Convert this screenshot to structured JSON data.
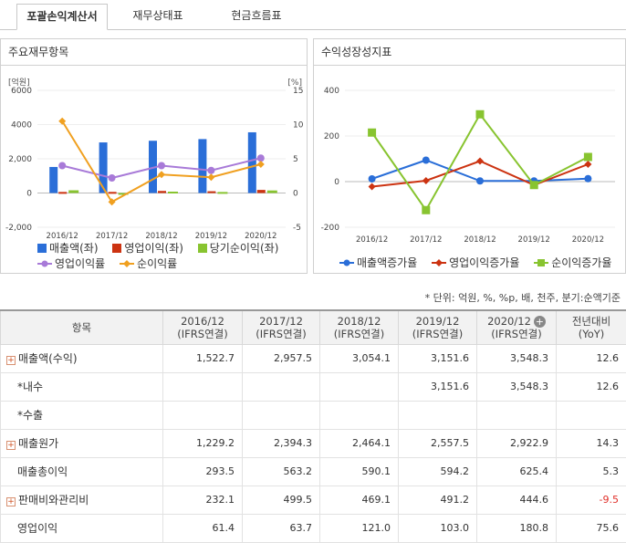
{
  "tabs": [
    {
      "label": "포괄손익계산서",
      "active": true
    },
    {
      "label": "재무상태표",
      "active": false
    },
    {
      "label": "현금흐름표",
      "active": false
    }
  ],
  "panel_left": {
    "title": "주요재무항목",
    "legend": [
      {
        "label": "매출액(좌)",
        "color": "#2a6ed8"
      },
      {
        "label": "영업이익(좌)",
        "color": "#cc3311"
      },
      {
        "label": "당기순이익(좌)",
        "color": "#88c430"
      },
      {
        "label": "영업이익률",
        "color": "#a87ad8"
      },
      {
        "label": "순이익률",
        "color": "#f0a020"
      }
    ]
  },
  "panel_right": {
    "title": "수익성장성지표",
    "legend": [
      {
        "label": "매출액증가율",
        "color": "#2a6ed8"
      },
      {
        "label": "영업이익증가율",
        "color": "#cc3311"
      },
      {
        "label": "순이익증가율",
        "color": "#88c430"
      }
    ]
  },
  "chart_data": [
    {
      "type": "bar",
      "categories": [
        "2016/12",
        "2017/12",
        "2018/12",
        "2019/12",
        "2020/12"
      ],
      "left_axis_label": "[억원]",
      "right_axis_label": "[%]",
      "ylim_left": [
        -2000,
        6000
      ],
      "yticks_left": [
        "6000",
        "4000",
        "2,000",
        "0",
        "-2,000"
      ],
      "ylim_right": [
        -5,
        15
      ],
      "yticks_right": [
        "15",
        "10",
        "5",
        "0",
        "-5"
      ],
      "series": [
        {
          "name": "매출액(좌)",
          "type": "bar",
          "values": [
            1522.7,
            2957.5,
            3054.1,
            3151.6,
            3548.3
          ],
          "color": "#2a6ed8"
        },
        {
          "name": "영업이익(좌)",
          "type": "bar",
          "values": [
            61.4,
            63.7,
            121.0,
            103.0,
            180.8
          ],
          "color": "#cc3311"
        },
        {
          "name": "당기순이익(좌)",
          "type": "bar",
          "values": [
            160,
            -40,
            80,
            60,
            150
          ],
          "color": "#88c430"
        },
        {
          "name": "영업이익률",
          "type": "line",
          "axis": "right",
          "values": [
            4.0,
            2.2,
            4.0,
            3.3,
            5.1
          ],
          "color": "#a87ad8"
        },
        {
          "name": "순이익률",
          "type": "line",
          "axis": "right",
          "values": [
            10.5,
            -1.3,
            2.7,
            2.3,
            4.2
          ],
          "color": "#f0a020"
        }
      ]
    },
    {
      "type": "line",
      "categories": [
        "2016/12",
        "2017/12",
        "2018/12",
        "2019/12",
        "2020/12"
      ],
      "ylim": [
        -200,
        400
      ],
      "yticks": [
        "400",
        "200",
        "0",
        "-200"
      ],
      "series": [
        {
          "name": "매출액증가율",
          "values": [
            12,
            94,
            3,
            3,
            13
          ],
          "color": "#2a6ed8"
        },
        {
          "name": "영업이익증가율",
          "values": [
            -22,
            4,
            90,
            -15,
            76
          ],
          "color": "#cc3311"
        },
        {
          "name": "순이익증가율",
          "values": [
            215,
            -125,
            295,
            -15,
            108
          ],
          "color": "#88c430"
        }
      ]
    }
  ],
  "unit_note": "* 단위: 억원, %, %p, 배, 천주, 분기:순액기준",
  "table": {
    "header_item": "항목",
    "columns": [
      {
        "year": "2016/12",
        "basis": "(IFRS연결)"
      },
      {
        "year": "2017/12",
        "basis": "(IFRS연결)"
      },
      {
        "year": "2018/12",
        "basis": "(IFRS연결)"
      },
      {
        "year": "2019/12",
        "basis": "(IFRS연결)"
      },
      {
        "year": "2020/12",
        "basis": "(IFRS연결)"
      }
    ],
    "yoy": {
      "label": "전년대비",
      "sub": "(YoY)"
    },
    "rows": [
      {
        "label": "매출액(수익)",
        "expand": true,
        "indent": false,
        "values": [
          "1,522.7",
          "2,957.5",
          "3,054.1",
          "3,151.6",
          "3,548.3"
        ],
        "yoy": "12.6"
      },
      {
        "label": "*내수",
        "expand": false,
        "indent": true,
        "values": [
          "",
          "",
          "",
          "3,151.6",
          "3,548.3"
        ],
        "yoy": "12.6"
      },
      {
        "label": "*수출",
        "expand": false,
        "indent": true,
        "values": [
          "",
          "",
          "",
          "",
          ""
        ],
        "yoy": ""
      },
      {
        "label": "매출원가",
        "expand": true,
        "indent": false,
        "values": [
          "1,229.2",
          "2,394.3",
          "2,464.1",
          "2,557.5",
          "2,922.9"
        ],
        "yoy": "14.3"
      },
      {
        "label": "매출총이익",
        "expand": false,
        "indent": true,
        "values": [
          "293.5",
          "563.2",
          "590.1",
          "594.2",
          "625.4"
        ],
        "yoy": "5.3"
      },
      {
        "label": "판매비와관리비",
        "expand": true,
        "indent": false,
        "values": [
          "232.1",
          "499.5",
          "469.1",
          "491.2",
          "444.6"
        ],
        "yoy": "-9.5"
      },
      {
        "label": "영업이익",
        "expand": false,
        "indent": true,
        "values": [
          "61.4",
          "63.7",
          "121.0",
          "103.0",
          "180.8"
        ],
        "yoy": "75.6"
      }
    ]
  }
}
